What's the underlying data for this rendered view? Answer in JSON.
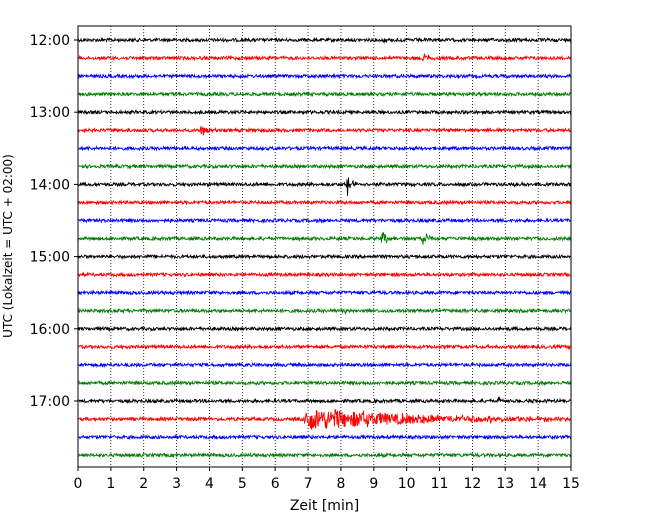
{
  "chart_data": {
    "type": "line",
    "title": "",
    "xlabel": "Zeit  [min]",
    "ylabel": "UTC (Lokalzeit = UTC + 02:00)",
    "xlim": [
      0,
      15
    ],
    "x_ticks": [
      0,
      1,
      2,
      3,
      4,
      5,
      6,
      7,
      8,
      9,
      10,
      11,
      12,
      13,
      14,
      15
    ],
    "x_tick_labels": [
      "0",
      "1",
      "2",
      "3",
      "4",
      "5",
      "6",
      "7",
      "8",
      "9",
      "10",
      "11",
      "12",
      "13",
      "14",
      "15"
    ],
    "y_tick_labels": [
      "12:00",
      "13:00",
      "14:00",
      "15:00",
      "16:00",
      "17:00"
    ],
    "vertical_grid": "dotted",
    "color_cycle": [
      "#000000",
      "#ff0000",
      "#0000ff",
      "#008000"
    ],
    "traces": [
      {
        "start": "12:00",
        "color": "#000000",
        "events": [
          {
            "t": 9.3,
            "amp": 0.25
          }
        ]
      },
      {
        "start": "12:15",
        "color": "#ff0000",
        "events": [
          {
            "t": 10.5,
            "amp": 0.55
          }
        ]
      },
      {
        "start": "12:30",
        "color": "#0000ff",
        "events": []
      },
      {
        "start": "12:45",
        "color": "#008000",
        "events": []
      },
      {
        "start": "13:00",
        "color": "#000000",
        "events": []
      },
      {
        "start": "13:15",
        "color": "#ff0000",
        "events": [
          {
            "t": 3.75,
            "amp": 0.7
          }
        ]
      },
      {
        "start": "13:30",
        "color": "#0000ff",
        "events": []
      },
      {
        "start": "13:45",
        "color": "#008000",
        "events": []
      },
      {
        "start": "14:00",
        "color": "#000000",
        "events": [
          {
            "t": 8.2,
            "amp": 1.1
          },
          {
            "t": 13.3,
            "amp": 0.25
          }
        ]
      },
      {
        "start": "14:15",
        "color": "#ff0000",
        "events": []
      },
      {
        "start": "14:30",
        "color": "#0000ff",
        "events": []
      },
      {
        "start": "14:45",
        "color": "#008000",
        "events": [
          {
            "t": 9.25,
            "amp": 0.8
          },
          {
            "t": 10.5,
            "amp": 0.8
          }
        ]
      },
      {
        "start": "15:00",
        "color": "#000000",
        "events": []
      },
      {
        "start": "15:15",
        "color": "#ff0000",
        "events": []
      },
      {
        "start": "15:30",
        "color": "#0000ff",
        "events": []
      },
      {
        "start": "15:45",
        "color": "#008000",
        "events": [
          {
            "t": 8.1,
            "amp": 0.3
          }
        ]
      },
      {
        "start": "16:00",
        "color": "#000000",
        "events": []
      },
      {
        "start": "16:15",
        "color": "#ff0000",
        "events": []
      },
      {
        "start": "16:30",
        "color": "#0000ff",
        "events": []
      },
      {
        "start": "16:45",
        "color": "#008000",
        "events": []
      },
      {
        "start": "17:00",
        "color": "#000000",
        "events": [
          {
            "t": 12.8,
            "amp": 0.3
          }
        ]
      },
      {
        "start": "17:15",
        "color": "#ff0000",
        "events": [
          {
            "t": 6.9,
            "amp": 1.0,
            "coda": 3.5
          },
          {
            "t": 11.2,
            "amp": 0.5
          }
        ]
      },
      {
        "start": "17:30",
        "color": "#0000ff",
        "events": []
      },
      {
        "start": "17:45",
        "color": "#008000",
        "events": []
      }
    ]
  }
}
